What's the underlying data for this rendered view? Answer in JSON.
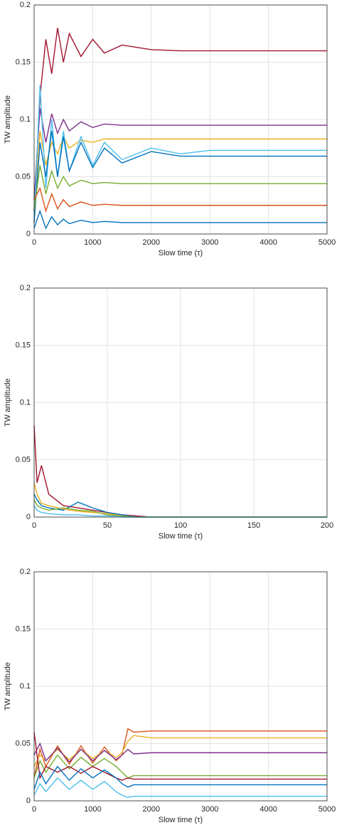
{
  "chart_data": [
    {
      "type": "line",
      "x_label": "Slow time (τ)",
      "y_label": "TW amplitude",
      "x": [
        0,
        100,
        200,
        300,
        400,
        500,
        600,
        800,
        1000,
        1200,
        1500,
        2000,
        2500,
        3000,
        4000,
        5000
      ],
      "xlim": [
        0,
        5000
      ],
      "xticks": [
        0,
        1000,
        2000,
        3000,
        4000,
        5000
      ],
      "ylim": [
        0,
        0.2
      ],
      "yticks": [
        0,
        0.05,
        0.1,
        0.15,
        0.2
      ],
      "grid": true,
      "series": [
        {
          "color": "#A2142F",
          "values": [
            0.02,
            0.12,
            0.17,
            0.14,
            0.18,
            0.15,
            0.175,
            0.155,
            0.17,
            0.158,
            0.165,
            0.161,
            0.16,
            0.16,
            0.16,
            0.16
          ]
        },
        {
          "color": "#7E2F8E",
          "values": [
            0.03,
            0.11,
            0.08,
            0.105,
            0.088,
            0.1,
            0.09,
            0.098,
            0.093,
            0.096,
            0.095,
            0.095,
            0.095,
            0.095,
            0.095,
            0.095
          ]
        },
        {
          "color": "#EDB120",
          "values": [
            0.02,
            0.09,
            0.06,
            0.08,
            0.07,
            0.085,
            0.075,
            0.082,
            0.08,
            0.083,
            0.083,
            0.083,
            0.083,
            0.083,
            0.083,
            0.083
          ]
        },
        {
          "color": "#4DBEEE",
          "values": [
            0.01,
            0.13,
            0.04,
            0.1,
            0.05,
            0.09,
            0.055,
            0.085,
            0.06,
            0.08,
            0.065,
            0.075,
            0.07,
            0.073,
            0.073,
            0.073
          ]
        },
        {
          "color": "#0072BD",
          "values": [
            0.01,
            0.08,
            0.05,
            0.09,
            0.05,
            0.085,
            0.055,
            0.08,
            0.058,
            0.075,
            0.062,
            0.072,
            0.068,
            0.068,
            0.068,
            0.068
          ]
        },
        {
          "color": "#77AC30",
          "values": [
            0.02,
            0.06,
            0.035,
            0.055,
            0.04,
            0.05,
            0.042,
            0.047,
            0.044,
            0.045,
            0.044,
            0.044,
            0.044,
            0.044,
            0.044,
            0.044
          ]
        },
        {
          "color": "#D95319",
          "values": [
            0.03,
            0.04,
            0.02,
            0.035,
            0.022,
            0.03,
            0.024,
            0.028,
            0.025,
            0.026,
            0.025,
            0.025,
            0.025,
            0.025,
            0.025,
            0.025
          ]
        },
        {
          "color": "#0072BD",
          "values": [
            0.005,
            0.02,
            0.005,
            0.015,
            0.008,
            0.013,
            0.009,
            0.012,
            0.01,
            0.011,
            0.01,
            0.01,
            0.01,
            0.01,
            0.01,
            0.01
          ]
        }
      ]
    },
    {
      "type": "line",
      "x_label": "Slow time (τ)",
      "y_label": "TW amplitude",
      "x": [
        0,
        2,
        5,
        10,
        20,
        30,
        40,
        50,
        60,
        70,
        80,
        100,
        150,
        200
      ],
      "xlim": [
        0,
        200
      ],
      "xticks": [
        0,
        50,
        100,
        150,
        200
      ],
      "ylim": [
        0,
        0.2
      ],
      "yticks": [
        0,
        0.05,
        0.1,
        0.15,
        0.2
      ],
      "grid": true,
      "series": [
        {
          "color": "#A2142F",
          "values": [
            0.08,
            0.03,
            0.045,
            0.02,
            0.01,
            0.008,
            0.006,
            0.004,
            0.002,
            0.001,
            0,
            0,
            0,
            0
          ]
        },
        {
          "color": "#0072BD",
          "values": [
            0.02,
            0.015,
            0.01,
            0.008,
            0.006,
            0.013,
            0.008,
            0.004,
            0.002,
            0,
            0,
            0,
            0,
            0
          ]
        },
        {
          "color": "#EDB120",
          "values": [
            0.03,
            0.02,
            0.012,
            0.01,
            0.007,
            0.005,
            0.004,
            0.003,
            0.001,
            0,
            0,
            0,
            0,
            0
          ]
        },
        {
          "color": "#77AC30",
          "values": [
            0.015,
            0.01,
            0.008,
            0.006,
            0.008,
            0.006,
            0.005,
            0.002,
            0.001,
            0,
            0,
            0,
            0,
            0
          ]
        },
        {
          "color": "#4DBEEE",
          "values": [
            0.01,
            0.006,
            0.004,
            0.003,
            0.002,
            0.002,
            0.001,
            0.001,
            0,
            0,
            0,
            0,
            0,
            0
          ]
        }
      ]
    },
    {
      "type": "line",
      "x_label": "Slow time (τ)",
      "y_label": "TW amplitude",
      "x": [
        0,
        100,
        200,
        400,
        600,
        800,
        1000,
        1200,
        1400,
        1500,
        1600,
        1700,
        2000,
        3000,
        4000,
        5000
      ],
      "xlim": [
        0,
        5000
      ],
      "xticks": [
        0,
        1000,
        2000,
        3000,
        4000,
        5000
      ],
      "ylim": [
        0,
        0.2
      ],
      "yticks": [
        0,
        0.05,
        0.1,
        0.15,
        0.2
      ],
      "grid": true,
      "series": [
        {
          "color": "#D95319",
          "values": [
            0.02,
            0.045,
            0.03,
            0.048,
            0.032,
            0.048,
            0.033,
            0.047,
            0.035,
            0.04,
            0.063,
            0.06,
            0.061,
            0.061,
            0.061,
            0.061
          ]
        },
        {
          "color": "#EDB120",
          "values": [
            0.03,
            0.04,
            0.035,
            0.045,
            0.036,
            0.045,
            0.037,
            0.044,
            0.038,
            0.042,
            0.052,
            0.057,
            0.055,
            0.055,
            0.055,
            0.055
          ]
        },
        {
          "color": "#7E2F8E",
          "values": [
            0.04,
            0.05,
            0.035,
            0.046,
            0.034,
            0.045,
            0.035,
            0.044,
            0.036,
            0.04,
            0.045,
            0.041,
            0.042,
            0.042,
            0.042,
            0.042
          ]
        },
        {
          "color": "#77AC30",
          "values": [
            0.02,
            0.035,
            0.025,
            0.04,
            0.028,
            0.038,
            0.03,
            0.037,
            0.03,
            0.025,
            0.02,
            0.022,
            0.022,
            0.022,
            0.022,
            0.022
          ]
        },
        {
          "color": "#A2142F",
          "values": [
            0.06,
            0.02,
            0.03,
            0.025,
            0.03,
            0.024,
            0.03,
            0.025,
            0.02,
            0.018,
            0.02,
            0.019,
            0.019,
            0.019,
            0.019,
            0.019
          ]
        },
        {
          "color": "#0072BD",
          "values": [
            0.01,
            0.025,
            0.015,
            0.03,
            0.018,
            0.028,
            0.02,
            0.027,
            0.02,
            0.015,
            0.012,
            0.014,
            0.014,
            0.014,
            0.014,
            0.014
          ]
        },
        {
          "color": "#4DBEEE",
          "values": [
            0.005,
            0.015,
            0.008,
            0.02,
            0.01,
            0.018,
            0.01,
            0.017,
            0.008,
            0.005,
            0.003,
            0.004,
            0.004,
            0.004,
            0.004,
            0.004
          ]
        }
      ]
    }
  ]
}
